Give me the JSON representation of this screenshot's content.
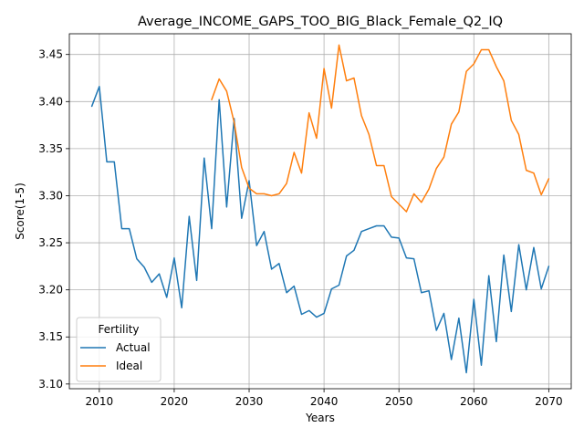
{
  "chart_data": {
    "type": "line",
    "title": "Average_INCOME_GAPS_TOO_BIG_Black_Female_Q2_IQ",
    "xlabel": "Years",
    "ylabel": "Score(1-5)",
    "xlim": [
      2006,
      2073
    ],
    "ylim": [
      3.095,
      3.472
    ],
    "xticks": [
      2010,
      2020,
      2030,
      2040,
      2050,
      2060,
      2070
    ],
    "yticks": [
      3.1,
      3.15,
      3.2,
      3.25,
      3.3,
      3.35,
      3.4,
      3.45
    ],
    "grid": true,
    "legend": {
      "title": "Fertility",
      "placement": "lower-left"
    },
    "series": [
      {
        "name": "Actual",
        "color": "#1f77b4",
        "x": [
          2009,
          2010,
          2011,
          2012,
          2013,
          2014,
          2015,
          2016,
          2017,
          2018,
          2019,
          2020,
          2021,
          2022,
          2023,
          2024,
          2025,
          2026,
          2027,
          2028,
          2029,
          2030,
          2031,
          2032,
          2033,
          2034,
          2035,
          2036,
          2037,
          2038,
          2039,
          2040,
          2041,
          2042,
          2043,
          2044,
          2045,
          2046,
          2047,
          2048,
          2049,
          2050,
          2051,
          2052,
          2053,
          2054,
          2055,
          2056,
          2057,
          2058,
          2059,
          2060,
          2061,
          2062,
          2063,
          2064,
          2065,
          2066,
          2067,
          2068,
          2069,
          2070
        ],
        "values": [
          3.395,
          3.416,
          3.336,
          3.336,
          3.265,
          3.265,
          3.233,
          3.224,
          3.208,
          3.217,
          3.192,
          3.234,
          3.181,
          3.278,
          3.21,
          3.34,
          3.265,
          3.402,
          3.288,
          3.382,
          3.276,
          3.316,
          3.247,
          3.262,
          3.222,
          3.228,
          3.197,
          3.204,
          3.174,
          3.178,
          3.171,
          3.175,
          3.201,
          3.205,
          3.236,
          3.242,
          3.262,
          3.265,
          3.268,
          3.268,
          3.256,
          3.255,
          3.234,
          3.233,
          3.197,
          3.199,
          3.157,
          3.175,
          3.126,
          3.17,
          3.112,
          3.19,
          3.12,
          3.215,
          3.145,
          3.237,
          3.177,
          3.248,
          3.2,
          3.245,
          3.201,
          3.225
        ]
      },
      {
        "name": "Ideal",
        "color": "#ff7f0e",
        "x": [
          2025,
          2026,
          2027,
          2028,
          2029,
          2030,
          2031,
          2032,
          2033,
          2034,
          2035,
          2036,
          2037,
          2038,
          2039,
          2040,
          2041,
          2042,
          2043,
          2044,
          2045,
          2046,
          2047,
          2048,
          2049,
          2050,
          2051,
          2052,
          2053,
          2054,
          2055,
          2056,
          2057,
          2058,
          2059,
          2060,
          2061,
          2062,
          2063,
          2064,
          2065,
          2066,
          2067,
          2068,
          2069,
          2070
        ],
        "values": [
          3.402,
          3.424,
          3.411,
          3.378,
          3.33,
          3.308,
          3.302,
          3.302,
          3.3,
          3.302,
          3.313,
          3.346,
          3.324,
          3.388,
          3.361,
          3.435,
          3.393,
          3.46,
          3.422,
          3.425,
          3.385,
          3.365,
          3.332,
          3.332,
          3.299,
          3.291,
          3.283,
          3.302,
          3.293,
          3.307,
          3.329,
          3.341,
          3.376,
          3.389,
          3.432,
          3.44,
          3.455,
          3.455,
          3.437,
          3.422,
          3.38,
          3.365,
          3.327,
          3.324,
          3.301,
          3.318
        ]
      }
    ]
  }
}
